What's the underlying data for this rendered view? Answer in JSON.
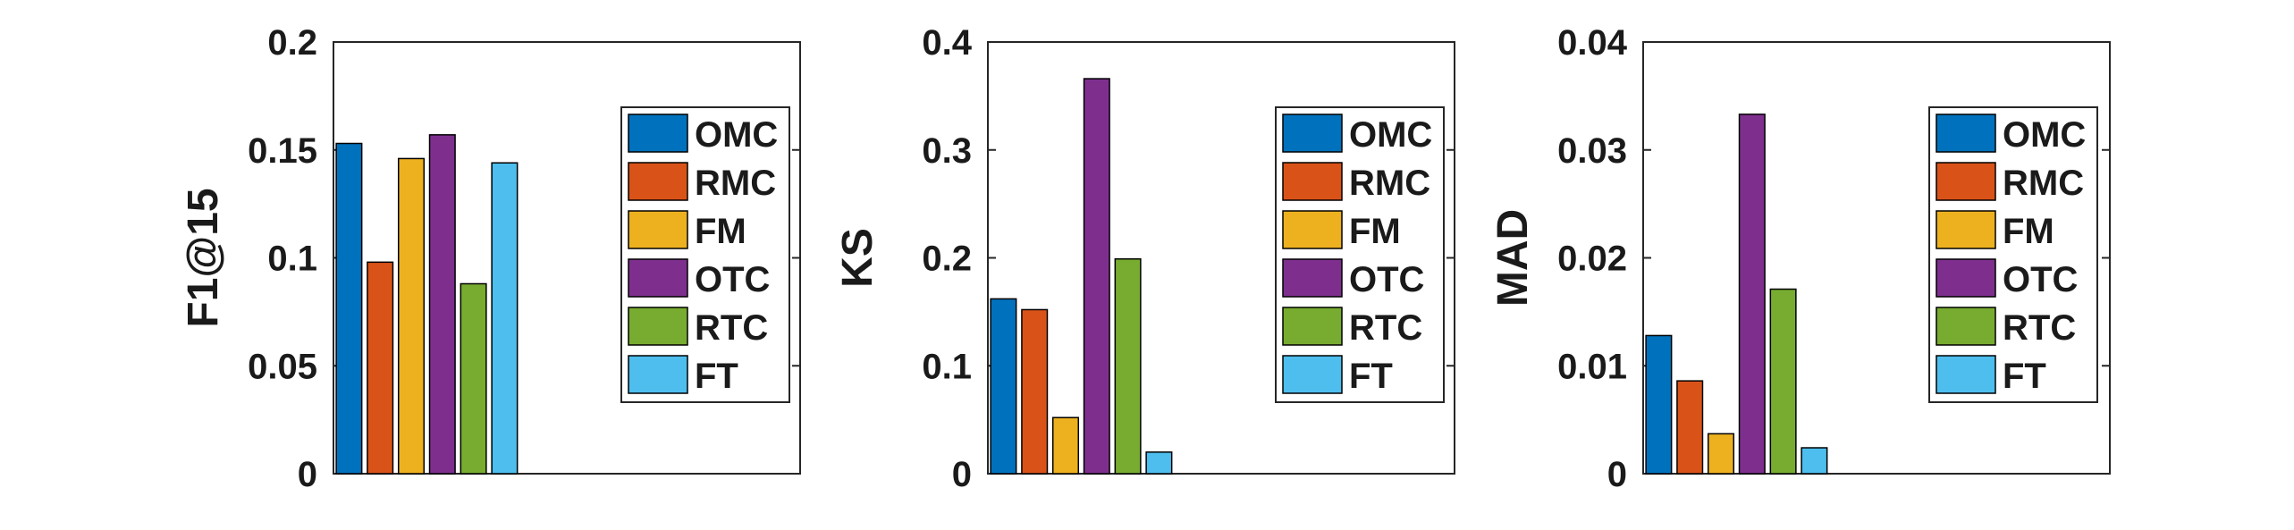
{
  "chart_data": [
    {
      "type": "bar",
      "ylabel": "F1@15",
      "ylim": [
        0,
        0.2
      ],
      "yticks": [
        "0",
        "0.05",
        "0.1",
        "0.15",
        "0.2"
      ],
      "grid": false,
      "legend_position": "top-right",
      "categories": [
        "OMC",
        "RMC",
        "FM",
        "OTC",
        "RTC",
        "FT"
      ],
      "values": [
        0.153,
        0.098,
        0.146,
        0.157,
        0.088,
        0.144
      ]
    },
    {
      "type": "bar",
      "ylabel": "KS",
      "ylim": [
        0,
        0.4
      ],
      "yticks": [
        "0",
        "0.1",
        "0.2",
        "0.3",
        "0.4"
      ],
      "grid": false,
      "legend_position": "top-right",
      "categories": [
        "OMC",
        "RMC",
        "FM",
        "OTC",
        "RTC",
        "FT"
      ],
      "values": [
        0.162,
        0.152,
        0.052,
        0.366,
        0.199,
        0.02
      ]
    },
    {
      "type": "bar",
      "ylabel": "MAD",
      "ylim": [
        0,
        0.04
      ],
      "yticks": [
        "0",
        "0.01",
        "0.02",
        "0.03",
        "0.04"
      ],
      "grid": false,
      "legend_position": "top-right",
      "categories": [
        "OMC",
        "RMC",
        "FM",
        "OTC",
        "RTC",
        "FT"
      ],
      "values": [
        0.0128,
        0.0086,
        0.0037,
        0.0333,
        0.0171,
        0.0024
      ]
    }
  ],
  "colors": [
    "#0072BD",
    "#D95319",
    "#EDB120",
    "#7E2F8E",
    "#77AC30",
    "#4DBEEE"
  ]
}
